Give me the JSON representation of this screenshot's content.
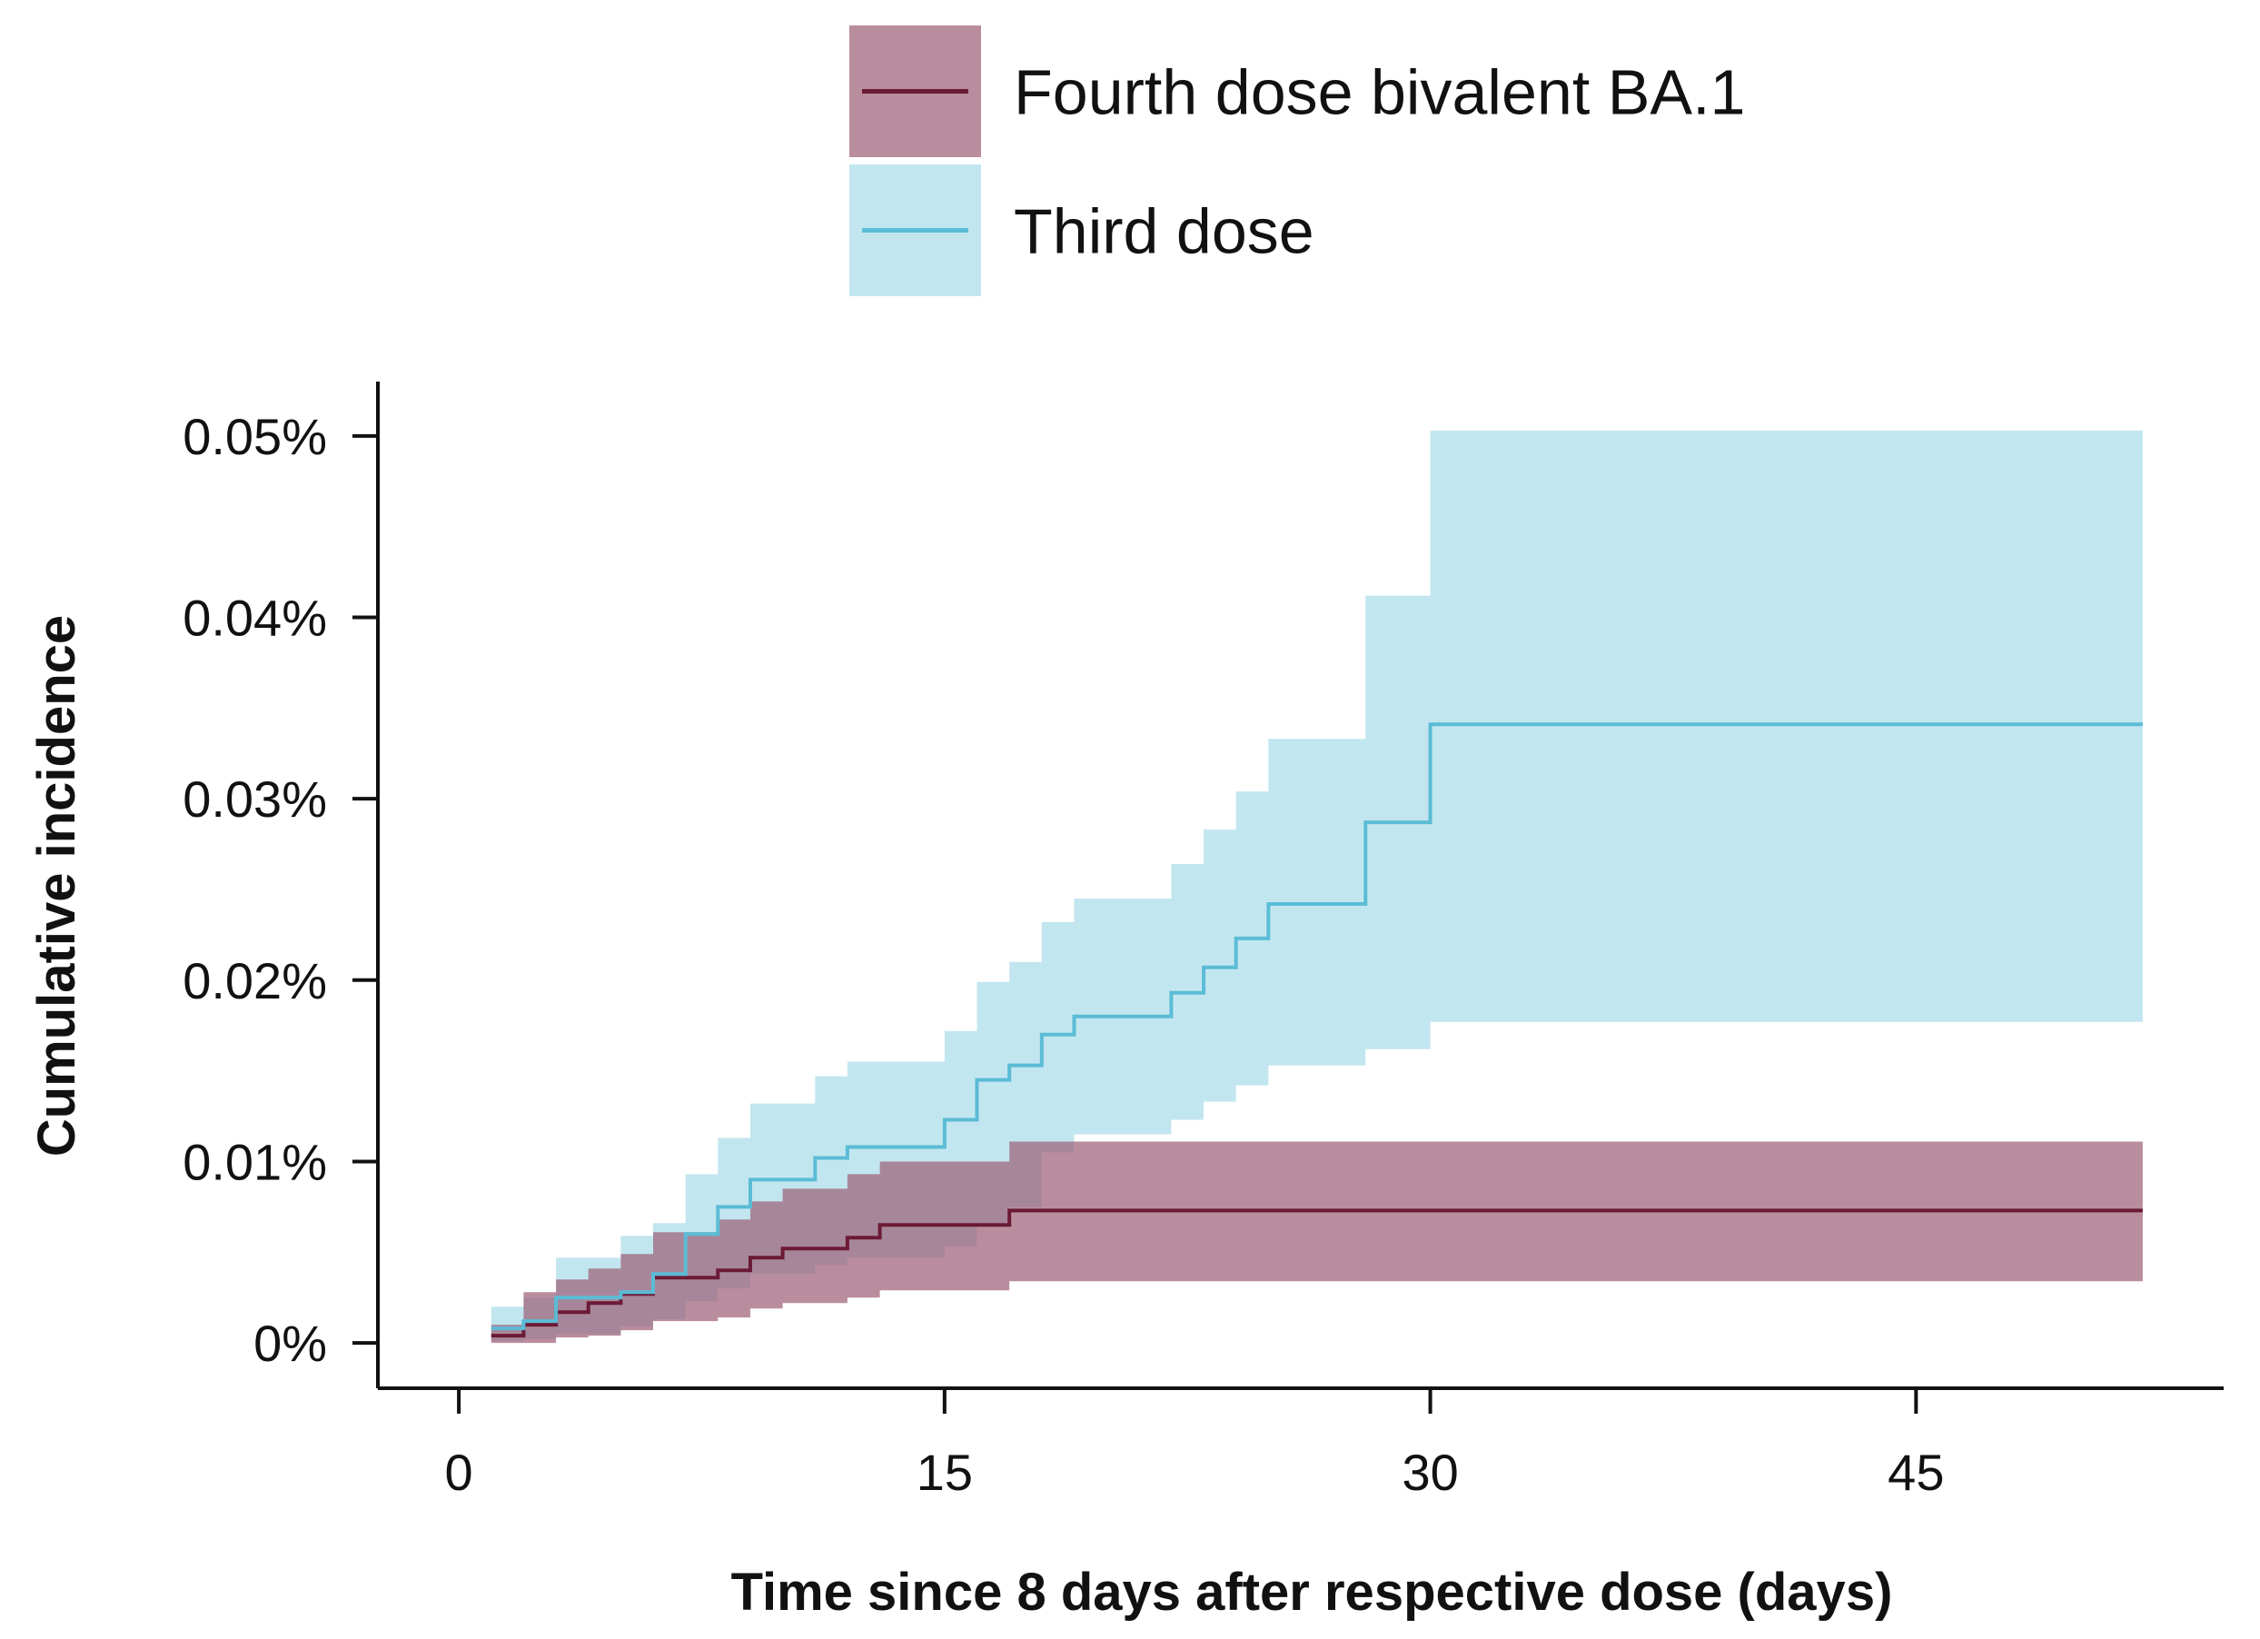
{
  "chart_data": {
    "type": "line",
    "subtype": "step-with-confidence-bands",
    "title": "",
    "xlabel": "Time since 8 days after respective dose (days)",
    "ylabel": "Cumulative incidence",
    "xlim": [
      -2.5,
      54.5
    ],
    "ylim": [
      -0.0025,
      0.053
    ],
    "x_ticks": [
      0,
      15,
      30,
      45
    ],
    "y_ticks": [
      0,
      0.01,
      0.02,
      0.03,
      0.04,
      0.05
    ],
    "y_tick_labels": [
      "0%",
      "0.01%",
      "0.02%",
      "0.03%",
      "0.04%",
      "0.05%"
    ],
    "grid": false,
    "legend_position": "top",
    "series": [
      {
        "name": "Third dose",
        "color": "#5BBCD6",
        "band_color": "#C2E6EF",
        "x": [
          1,
          2,
          3,
          5,
          6,
          7,
          8,
          9,
          11,
          12,
          15,
          16,
          17,
          18,
          19,
          22,
          23,
          24,
          25,
          28,
          30,
          52
        ],
        "y": [
          0.0008,
          0.0012,
          0.0025,
          0.0028,
          0.0038,
          0.006,
          0.0075,
          0.009,
          0.0102,
          0.0108,
          0.0123,
          0.0145,
          0.0153,
          0.017,
          0.018,
          0.0193,
          0.0207,
          0.0223,
          0.0242,
          0.0287,
          0.0341,
          0.0341
        ],
        "lower": [
          0.0001,
          0.0002,
          0.0005,
          0.0009,
          0.0013,
          0.0023,
          0.003,
          0.0038,
          0.0043,
          0.0047,
          0.0053,
          0.0066,
          0.0075,
          0.0105,
          0.0115,
          0.0123,
          0.0133,
          0.0142,
          0.0153,
          0.0162,
          0.0177,
          0.0177
        ],
        "upper": [
          0.002,
          0.0025,
          0.0047,
          0.0059,
          0.0066,
          0.0093,
          0.0113,
          0.0132,
          0.0147,
          0.0155,
          0.0172,
          0.0199,
          0.021,
          0.0232,
          0.0245,
          0.0264,
          0.0283,
          0.0304,
          0.0333,
          0.0412,
          0.0503,
          0.0503
        ]
      },
      {
        "name": "Fourth dose bivalent BA.1",
        "color": "#6B1A35",
        "band_color": "#9C5D75",
        "band_opacity": 0.7,
        "x": [
          1,
          2,
          3,
          4,
          5,
          6,
          8,
          9,
          10,
          12,
          13,
          15,
          17,
          52
        ],
        "y": [
          0.0004,
          0.001,
          0.0017,
          0.0022,
          0.0027,
          0.0036,
          0.004,
          0.0047,
          0.0052,
          0.0058,
          0.0065,
          0.0065,
          0.0073,
          0.0073
        ],
        "lower": [
          0.0,
          0.0,
          0.0003,
          0.0004,
          0.0007,
          0.0012,
          0.0014,
          0.0019,
          0.0022,
          0.0025,
          0.0029,
          0.0029,
          0.0034,
          0.0034
        ],
        "upper": [
          0.001,
          0.0028,
          0.0035,
          0.0041,
          0.0049,
          0.0061,
          0.0068,
          0.0078,
          0.0085,
          0.0093,
          0.01,
          0.01,
          0.0111,
          0.0111
        ]
      }
    ]
  }
}
